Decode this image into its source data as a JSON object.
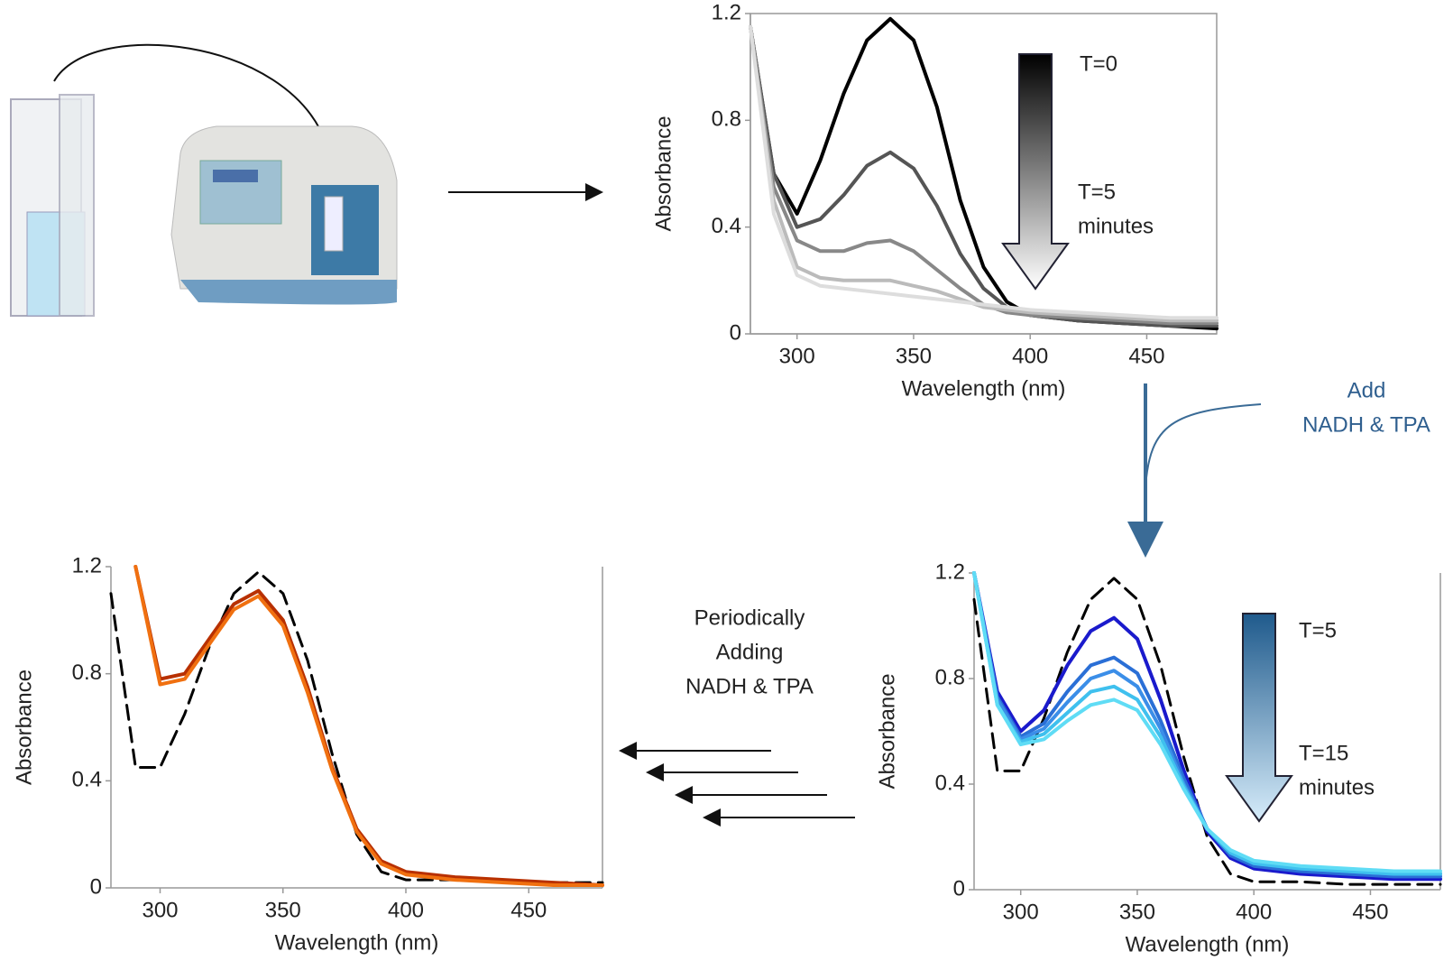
{
  "chart_data": [
    {
      "type": "line",
      "x_label": "Wavelength (nm)",
      "y_label": "Absorbance",
      "x": [
        280,
        290,
        300,
        310,
        320,
        330,
        340,
        350,
        360,
        370,
        380,
        390,
        400,
        420,
        440,
        460,
        480
      ],
      "xlim": [
        280,
        480
      ],
      "xticks": [
        300,
        350,
        400,
        450
      ],
      "ylim": [
        0,
        1.2
      ],
      "yticks": [
        0,
        0.4,
        0.8,
        1.2
      ],
      "frame": true,
      "series": [
        {
          "color": "#000000",
          "values": [
            1.15,
            0.6,
            0.45,
            0.65,
            0.9,
            1.1,
            1.18,
            1.1,
            0.85,
            0.5,
            0.25,
            0.12,
            0.07,
            0.05,
            0.04,
            0.03,
            0.02
          ]
        },
        {
          "color": "#555555",
          "values": [
            1.15,
            0.6,
            0.4,
            0.43,
            0.52,
            0.63,
            0.68,
            0.62,
            0.48,
            0.3,
            0.17,
            0.1,
            0.07,
            0.05,
            0.04,
            0.03,
            0.03
          ]
        },
        {
          "color": "#888888",
          "values": [
            1.15,
            0.55,
            0.35,
            0.31,
            0.31,
            0.34,
            0.35,
            0.31,
            0.24,
            0.17,
            0.11,
            0.08,
            0.07,
            0.06,
            0.05,
            0.04,
            0.04
          ]
        },
        {
          "color": "#bbbbbb",
          "values": [
            1.15,
            0.5,
            0.25,
            0.21,
            0.2,
            0.2,
            0.2,
            0.18,
            0.16,
            0.13,
            0.1,
            0.09,
            0.08,
            0.07,
            0.06,
            0.05,
            0.05
          ]
        },
        {
          "color": "#dddddd",
          "values": [
            1.15,
            0.45,
            0.22,
            0.18,
            0.17,
            0.16,
            0.15,
            0.14,
            0.13,
            0.12,
            0.11,
            0.1,
            0.09,
            0.08,
            0.07,
            0.06,
            0.06
          ]
        }
      ],
      "annotations": [
        [
          "T=0"
        ],
        [
          "T=5",
          "minutes"
        ]
      ],
      "arrow_colors": [
        "#000000",
        "#ffffff"
      ]
    },
    {
      "type": "line",
      "x_label": "Wavelength (nm)",
      "y_label": "Absorbance",
      "x": [
        280,
        290,
        300,
        310,
        320,
        330,
        340,
        350,
        360,
        370,
        380,
        390,
        400,
        420,
        440,
        460,
        480
      ],
      "xlim": [
        280,
        480
      ],
      "xticks": [
        300,
        350,
        400,
        450
      ],
      "ylim": [
        0,
        1.2
      ],
      "yticks": [
        0,
        0.4,
        0.8,
        1.2
      ],
      "frame": false,
      "series": [
        {
          "color": "#000000",
          "dashed": true,
          "values": [
            1.1,
            0.45,
            0.45,
            0.65,
            0.9,
            1.1,
            1.18,
            1.1,
            0.85,
            0.5,
            0.2,
            0.06,
            0.03,
            0.03,
            0.02,
            0.02,
            0.02
          ]
        },
        {
          "color": "#1a1acc",
          "values": [
            1.2,
            0.75,
            0.6,
            0.68,
            0.85,
            0.98,
            1.03,
            0.95,
            0.72,
            0.45,
            0.22,
            0.12,
            0.08,
            0.06,
            0.05,
            0.04,
            0.04
          ]
        },
        {
          "color": "#2a6fd6",
          "values": [
            1.2,
            0.73,
            0.58,
            0.63,
            0.75,
            0.85,
            0.88,
            0.82,
            0.64,
            0.42,
            0.23,
            0.13,
            0.09,
            0.07,
            0.06,
            0.05,
            0.05
          ]
        },
        {
          "color": "#3b8ee8",
          "values": [
            1.2,
            0.72,
            0.57,
            0.61,
            0.71,
            0.8,
            0.83,
            0.77,
            0.61,
            0.4,
            0.23,
            0.14,
            0.1,
            0.08,
            0.07,
            0.06,
            0.06
          ]
        },
        {
          "color": "#3fc0ee",
          "values": [
            1.2,
            0.7,
            0.56,
            0.59,
            0.67,
            0.75,
            0.77,
            0.72,
            0.58,
            0.39,
            0.23,
            0.14,
            0.1,
            0.08,
            0.07,
            0.06,
            0.06
          ]
        },
        {
          "color": "#5fdcf5",
          "values": [
            1.2,
            0.7,
            0.55,
            0.57,
            0.64,
            0.7,
            0.72,
            0.68,
            0.55,
            0.38,
            0.23,
            0.15,
            0.11,
            0.09,
            0.08,
            0.07,
            0.07
          ]
        }
      ],
      "annotations": [
        [
          "T=5"
        ],
        [
          "T=15",
          "minutes"
        ]
      ],
      "arrow_colors": [
        "#1f5a8c",
        "#d6ecfa"
      ]
    },
    {
      "type": "line",
      "x_label": "Wavelength (nm)",
      "y_label": "Absorbance",
      "x": [
        280,
        290,
        300,
        310,
        320,
        330,
        340,
        350,
        360,
        370,
        380,
        390,
        400,
        420,
        440,
        460,
        480
      ],
      "xlim": [
        280,
        480
      ],
      "xticks": [
        300,
        350,
        400,
        450
      ],
      "ylim": [
        0,
        1.2
      ],
      "yticks": [
        0,
        0.4,
        0.8,
        1.2
      ],
      "frame": false,
      "series": [
        {
          "color": "#000000",
          "dashed": true,
          "values": [
            1.1,
            0.45,
            0.45,
            0.65,
            0.9,
            1.1,
            1.18,
            1.1,
            0.85,
            0.5,
            0.2,
            0.06,
            0.03,
            0.03,
            0.02,
            0.02,
            0.02
          ]
        },
        {
          "color": "#b83000",
          "values": [
            null,
            1.2,
            0.78,
            0.8,
            0.93,
            1.06,
            1.11,
            1.0,
            0.75,
            0.45,
            0.22,
            0.1,
            0.06,
            0.04,
            0.03,
            0.02,
            0.01
          ]
        },
        {
          "color": "#f07010",
          "values": [
            null,
            1.2,
            0.76,
            0.78,
            0.91,
            1.04,
            1.09,
            0.98,
            0.73,
            0.44,
            0.21,
            0.09,
            0.05,
            0.03,
            0.02,
            0.01,
            0.01
          ]
        }
      ],
      "annotations": []
    }
  ],
  "annotations": {
    "add": [
      "Add",
      "NADH & TPA"
    ],
    "periodic": [
      "Periodically",
      "Adding",
      "NADH & TPA"
    ]
  }
}
